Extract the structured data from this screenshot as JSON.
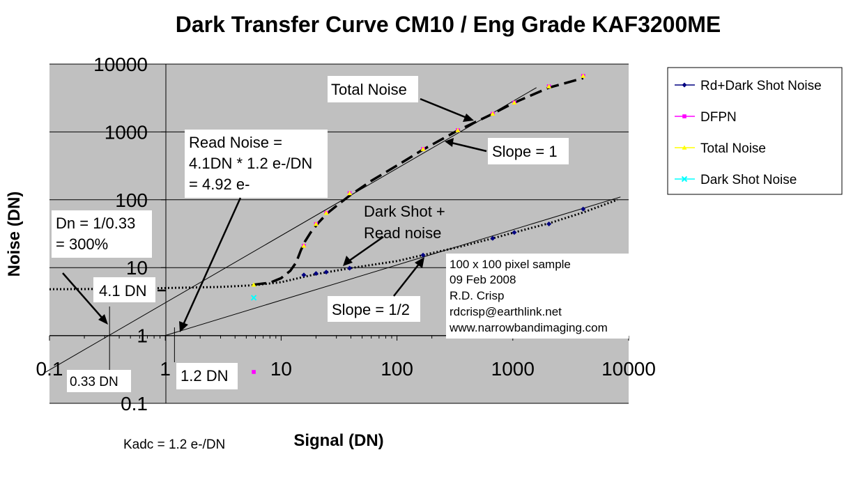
{
  "chart_data": {
    "type": "scatter",
    "title": "Dark Transfer Curve CM10 / Eng Grade KAF3200ME",
    "xlabel": "Signal (DN)",
    "ylabel": "Noise (DN)",
    "x_scale": "log",
    "y_scale": "log",
    "xlim": [
      0.1,
      10000
    ],
    "ylim": [
      0.1,
      10000
    ],
    "x_ticks": [
      "0.1",
      "1",
      "10",
      "100",
      "1000",
      "10000"
    ],
    "y_ticks": [
      "0.1",
      "1",
      "10",
      "100",
      "1000",
      "10000"
    ],
    "grid": "major horizontal",
    "plot_background": "#c0c0c0",
    "legend_position": "right",
    "series": [
      {
        "name": "Rd+Dark Shot Noise",
        "color": "#000080",
        "marker": "diamond",
        "points": [
          [
            15.7,
            7.8
          ],
          [
            20,
            8.2
          ],
          [
            24.5,
            8.6
          ],
          [
            39,
            9.8
          ],
          [
            168,
            15.3
          ],
          [
            670,
            27
          ],
          [
            1030,
            33
          ],
          [
            2050,
            44
          ],
          [
            4050,
            73
          ]
        ]
      },
      {
        "name": "DFPN",
        "color": "#ff00ff",
        "marker": "square",
        "points": [
          [
            5.8,
            0.29
          ],
          [
            15.7,
            21
          ],
          [
            20,
            44
          ],
          [
            24.5,
            64
          ],
          [
            39,
            125
          ],
          [
            168,
            560
          ],
          [
            335,
            1060
          ],
          [
            670,
            1850
          ],
          [
            1030,
            2700
          ],
          [
            2050,
            4700
          ],
          [
            4050,
            6700
          ]
        ]
      },
      {
        "name": "Total Noise",
        "color": "#ffff00",
        "marker": "triangle",
        "points": [
          [
            5.8,
            5.6
          ],
          [
            15.7,
            21
          ],
          [
            20,
            44
          ],
          [
            24.5,
            64
          ],
          [
            39,
            125
          ],
          [
            168,
            560
          ],
          [
            335,
            1060
          ],
          [
            670,
            1850
          ],
          [
            1030,
            2700
          ],
          [
            2050,
            4700
          ],
          [
            4050,
            6700
          ]
        ]
      },
      {
        "name": "Dark Shot Noise",
        "color": "#00ffff",
        "marker": "x",
        "points": [
          [
            5.8,
            3.6
          ]
        ]
      }
    ],
    "reference_lines": [
      {
        "name": "slope-1-line",
        "points": [
          [
            0.09,
            0.28
          ],
          [
            1600,
            4500
          ]
        ]
      },
      {
        "name": "slope-half-line",
        "points": [
          [
            1,
            1
          ],
          [
            8500,
            110
          ]
        ]
      }
    ],
    "fit_curves": [
      {
        "name": "total-noise-fit",
        "style": "dashed",
        "points": [
          [
            5.8,
            5.6
          ],
          [
            8,
            6
          ],
          [
            10,
            7
          ],
          [
            12,
            9
          ],
          [
            13.5,
            12
          ],
          [
            14.8,
            18
          ],
          [
            16,
            24
          ],
          [
            18,
            33
          ],
          [
            21,
            46
          ],
          [
            25,
            63
          ],
          [
            31,
            85
          ],
          [
            39,
            115
          ],
          [
            60,
            190
          ],
          [
            100,
            320
          ],
          [
            168,
            550
          ],
          [
            335,
            1050
          ],
          [
            670,
            1850
          ],
          [
            1030,
            2700
          ],
          [
            2050,
            4500
          ],
          [
            4050,
            6200
          ]
        ]
      },
      {
        "name": "shot-read-fit",
        "style": "dotted",
        "points": [
          [
            0.01,
            4.8
          ],
          [
            0.3,
            4.85
          ],
          [
            1,
            5.0
          ],
          [
            3,
            5.2
          ],
          [
            5.8,
            5.5
          ],
          [
            10,
            6.1
          ],
          [
            15.7,
            7.3
          ],
          [
            20,
            8
          ],
          [
            39,
            9.8
          ],
          [
            100,
            12.5
          ],
          [
            168,
            15.3
          ],
          [
            335,
            20
          ],
          [
            670,
            27
          ],
          [
            1030,
            33
          ],
          [
            2050,
            45
          ],
          [
            4050,
            65
          ],
          [
            8000,
            100
          ]
        ]
      }
    ]
  },
  "annotations": {
    "total_noise": "Total Noise",
    "slope_1": "Slope = 1",
    "read_noise_1": "Read Noise =",
    "read_noise_2": "4.1DN * 1.2 e-/DN",
    "read_noise_3": "= 4.92 e-",
    "dark_shot_1": "Dark Shot +",
    "dark_shot_2": "Read noise",
    "dn_1": "Dn = 1/0.33",
    "dn_2": "= 300%",
    "dn_41": "4.1 DN",
    "slope_half": "Slope = 1/2",
    "sample_1": "100 x 100 pixel sample",
    "sample_2": "09 Feb 2008",
    "sample_3": "R.D. Crisp",
    "sample_4": "rdcrisp@earthlink.net",
    "sample_5": "www.narrowbandimaging.com",
    "dn_033": "0.33 DN",
    "dn_12": "1.2 DN",
    "kadc": "Kadc = 1.2 e-/DN"
  }
}
